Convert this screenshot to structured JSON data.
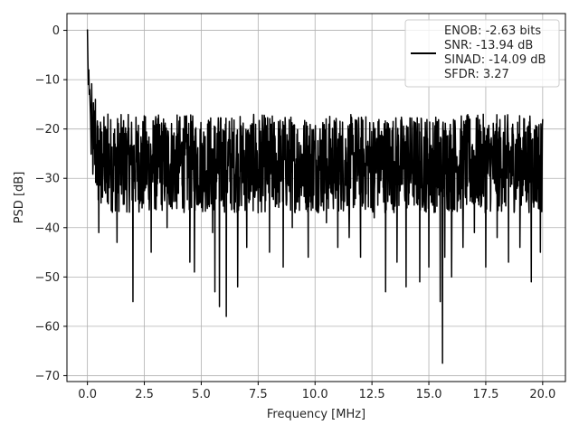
{
  "chart_data": {
    "type": "line",
    "title": "",
    "xlabel": "Frequency [MHz]",
    "ylabel": "PSD [dB]",
    "xlim": [
      -0.9,
      21.0
    ],
    "ylim": [
      -71.2,
      3.4
    ],
    "xticks": [
      0.0,
      2.5,
      5.0,
      7.5,
      10.0,
      12.5,
      15.0,
      17.5,
      20.0
    ],
    "xtick_labels": [
      "0.0",
      "2.5",
      "5.0",
      "7.5",
      "10.0",
      "12.5",
      "15.0",
      "17.5",
      "20.0"
    ],
    "yticks": [
      0,
      -10,
      -20,
      -30,
      -40,
      -50,
      -60,
      -70
    ],
    "ytick_labels": [
      "0",
      "−10",
      "−20",
      "−30",
      "−40",
      "−50",
      "−60",
      "−70"
    ],
    "grid": true,
    "legend_position": "top-right",
    "series": [
      {
        "name": "ENOB: -2.63 bits\nSNR: -13.94 dB\nSINAD: -14.09 dB\nSFDR: 3.27",
        "color": "#000000",
        "noise_floor_band": [
          -17,
          -37
        ],
        "x": [
          0.0,
          0.01,
          0.02,
          0.04,
          0.06,
          0.08,
          0.1,
          0.12,
          0.15,
          0.2,
          0.25,
          0.3,
          0.35,
          0.4,
          0.45,
          0.5,
          0.55,
          0.6,
          0.7,
          0.8,
          0.9,
          1.0,
          1.3,
          1.6,
          2.0,
          2.4,
          2.8,
          3.1,
          3.5,
          4.0,
          4.5,
          4.7,
          5.0,
          5.5,
          5.6,
          5.8,
          6.1,
          6.6,
          7.0,
          7.5,
          8.0,
          8.6,
          9.0,
          9.7,
          10.5,
          11.0,
          11.5,
          12.0,
          12.6,
          13.1,
          13.6,
          14.0,
          14.6,
          15.0,
          15.5,
          15.6,
          15.7,
          16.0,
          16.5,
          17.0,
          17.5,
          18.0,
          18.5,
          19.0,
          19.5,
          19.9,
          20.0
        ],
        "y": [
          0.2,
          -3,
          -6,
          -11,
          -8,
          -13,
          -12,
          -15,
          -21,
          -18,
          -27,
          -24,
          -14,
          -30,
          -23,
          -41,
          -20,
          -35,
          -25,
          -33,
          -17,
          -29,
          -43,
          -24,
          -55,
          -36,
          -45,
          -30,
          -40,
          -33,
          -47,
          -49,
          -31,
          -41,
          -53,
          -56,
          -58,
          -52,
          -44,
          -37,
          -45,
          -48,
          -40,
          -46,
          -39,
          -44,
          -42,
          -46,
          -38,
          -53,
          -47,
          -52,
          -51,
          -48,
          -55,
          -67.5,
          -46,
          -50,
          -44,
          -41,
          -48,
          -42,
          -47,
          -44,
          -51,
          -45,
          -18
        ]
      }
    ]
  }
}
